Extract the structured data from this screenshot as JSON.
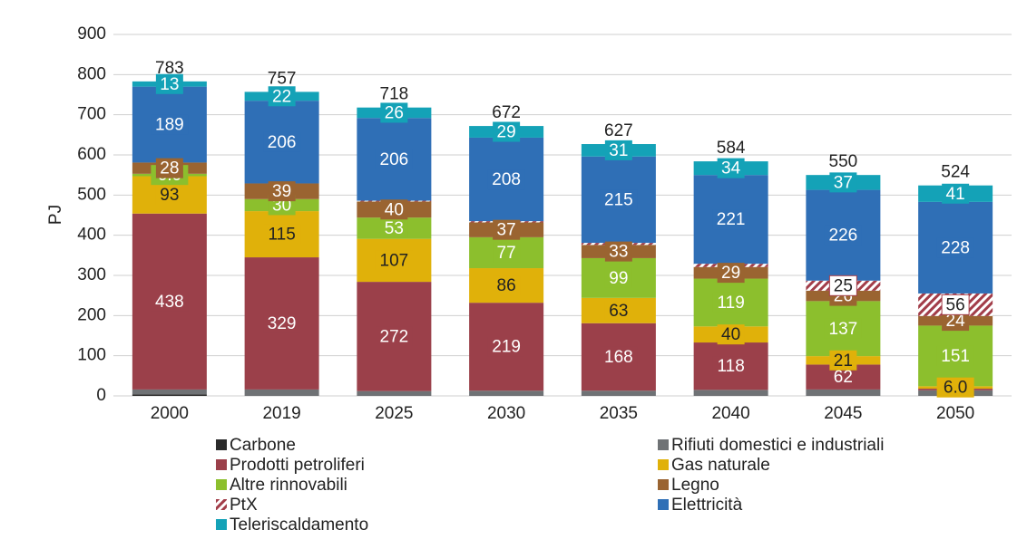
{
  "chart_data": {
    "type": "stacked_bar",
    "y_label": "PJ",
    "categories": [
      "2000",
      "2019",
      "2025",
      "2030",
      "2035",
      "2040",
      "2045",
      "2050"
    ],
    "ylim": [
      0,
      900
    ],
    "yticks": [
      0,
      100,
      200,
      300,
      400,
      500,
      600,
      700,
      800,
      900
    ],
    "grid": true,
    "totals": [
      783,
      757,
      718,
      672,
      627,
      584,
      550,
      524
    ],
    "series": [
      {
        "name": "Carbone",
        "color": "#2b2b2b",
        "values": [
          4,
          0,
          0,
          0,
          0,
          0,
          0,
          0
        ],
        "value_labels": [
          null,
          null,
          null,
          null,
          null,
          null,
          null,
          null
        ]
      },
      {
        "name": "Rifiuti domestici e industriali",
        "color": "#6f7275",
        "values": [
          12,
          16,
          12,
          13,
          13,
          15,
          16,
          14
        ],
        "value_labels": [
          null,
          null,
          null,
          null,
          null,
          null,
          null,
          null
        ]
      },
      {
        "name": "Prodotti petroliferi",
        "color": "#9b404a",
        "values": [
          438,
          329,
          272,
          219,
          168,
          118,
          62,
          4
        ],
        "value_labels": [
          "438",
          "329",
          "272",
          "219",
          "168",
          "118",
          "62",
          null
        ]
      },
      {
        "name": "Gas naturale",
        "color": "#e0b10a",
        "values": [
          93,
          115,
          107,
          86,
          63,
          40,
          21,
          6
        ],
        "value_labels": [
          "93",
          "115",
          "107",
          "86",
          "63",
          "40",
          "21",
          "6.0"
        ]
      },
      {
        "name": "Altre rinnovabili",
        "color": "#8cbf2d",
        "values": [
          6,
          30,
          53,
          77,
          99,
          119,
          137,
          151
        ],
        "value_labels": [
          "6.0",
          "30",
          "53",
          "77",
          "99",
          "119",
          "137",
          "151"
        ]
      },
      {
        "name": "Legno",
        "color": "#9a6431",
        "values": [
          28,
          39,
          40,
          37,
          33,
          29,
          26,
          24
        ],
        "value_labels": [
          "28",
          "39",
          "40",
          "37",
          "33",
          "29",
          "26",
          "24"
        ]
      },
      {
        "name": "PtX",
        "color": "#a23d49",
        "hatch": true,
        "values": [
          0,
          0,
          2,
          3,
          5,
          8,
          25,
          56
        ],
        "value_labels": [
          null,
          null,
          null,
          null,
          null,
          null,
          "25",
          "56"
        ]
      },
      {
        "name": "Elettricità",
        "color": "#2f6fb6",
        "values": [
          189,
          206,
          206,
          208,
          215,
          221,
          226,
          228
        ],
        "value_labels": [
          "189",
          "206",
          "206",
          "208",
          "215",
          "221",
          "226",
          "228"
        ]
      },
      {
        "name": "Teleriscaldamento",
        "color": "#14a2b7",
        "values": [
          13,
          22,
          26,
          29,
          31,
          34,
          37,
          41
        ],
        "value_labels": [
          "13",
          "22",
          "26",
          "29",
          "31",
          "34",
          "37",
          "41"
        ]
      }
    ]
  }
}
